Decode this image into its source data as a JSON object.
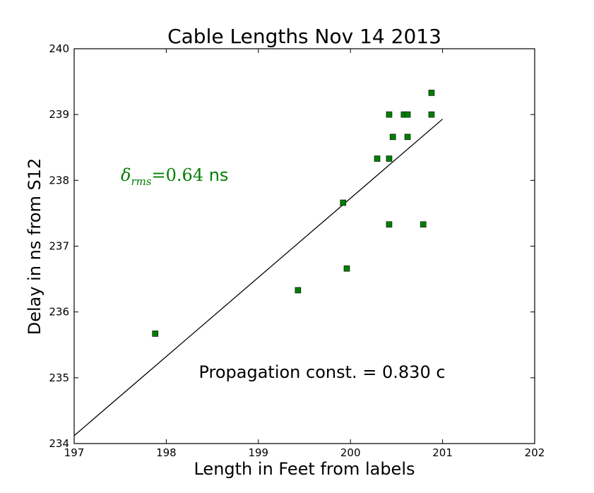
{
  "chart_data": {
    "type": "scatter",
    "title": "Cable Lengths  Nov 14 2013",
    "xlabel": "Length in Feet from labels",
    "ylabel": "Delay in ns from S12",
    "xlim": [
      197,
      202
    ],
    "ylim": [
      234,
      240
    ],
    "xticks": [
      "197",
      "198",
      "199",
      "200",
      "201",
      "202"
    ],
    "yticks": [
      "234",
      "235",
      "236",
      "237",
      "238",
      "239",
      "240"
    ],
    "grid": false,
    "marker": "square",
    "marker_color": "#007f00",
    "series": [
      {
        "points": [
          [
            197.88,
            235.67
          ],
          [
            199.43,
            236.33
          ],
          [
            199.92,
            237.66
          ],
          [
            199.96,
            236.66
          ],
          [
            200.29,
            238.33
          ],
          [
            200.42,
            239.0
          ],
          [
            200.42,
            238.33
          ],
          [
            200.42,
            237.33
          ],
          [
            200.46,
            238.66
          ],
          [
            200.58,
            239.0
          ],
          [
            200.62,
            239.0
          ],
          [
            200.62,
            238.66
          ],
          [
            200.79,
            237.33
          ],
          [
            200.88,
            239.33
          ],
          [
            200.88,
            239.0
          ]
        ]
      }
    ],
    "fit_line": {
      "x": [
        197,
        201
      ],
      "y": [
        234.12,
        238.93
      ],
      "color": "#000000"
    },
    "annotations": {
      "rms_symbol": "δ",
      "rms_subscript": "rms",
      "rms_value": "=0.64",
      "rms_unit": " ns",
      "rms_color": "#007f00",
      "propagation": "Propagation const. = 0.830 c"
    }
  }
}
